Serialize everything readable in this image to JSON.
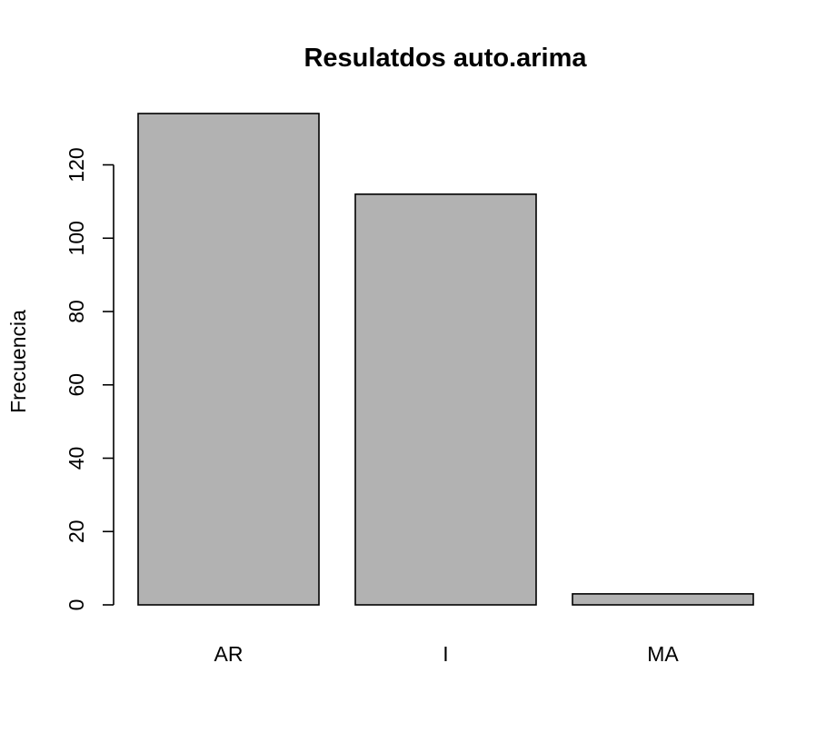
{
  "chart_data": {
    "type": "bar",
    "title": "Resulatdos auto.arima",
    "xlabel": "",
    "ylabel": "Frecuencia",
    "categories": [
      "AR",
      "I",
      "MA"
    ],
    "values": [
      134,
      112,
      3
    ],
    "ylim": [
      0,
      134
    ],
    "yticks": [
      0,
      20,
      40,
      60,
      80,
      100,
      120
    ],
    "grid": false,
    "bar_color": "#b2b2b2",
    "bar_stroke": "#000000"
  }
}
